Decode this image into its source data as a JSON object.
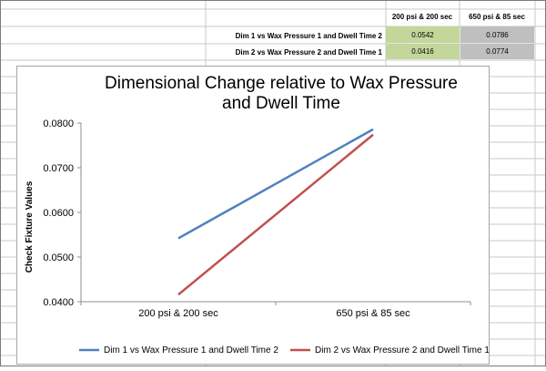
{
  "spreadsheet": {
    "column_headers": [
      "200 psi & 200 sec",
      "650 psi & 85 sec"
    ],
    "rows": [
      {
        "label": "Dim 1 vs Wax Pressure 1 and Dwell Time 2",
        "values": [
          "0.0542",
          "0.0786"
        ]
      },
      {
        "label": "Dim 2 vs Wax Pressure 2 and Dwell Time 1",
        "values": [
          "0.0416",
          "0.0774"
        ]
      }
    ],
    "colors": {
      "col1_fill": "#c4d79b",
      "col2_fill": "#bfbfbf",
      "grid": "#c8c8c8"
    }
  },
  "chart_data": {
    "type": "line",
    "title_line1": "Dimensional Change relative to Wax Pressure",
    "title_line2": "and Dwell Time",
    "xlabel": "",
    "ylabel": "Check Fixture Values",
    "categories": [
      "200 psi & 200 sec",
      "650 psi & 85 sec"
    ],
    "ylim": [
      0.04,
      0.08
    ],
    "yticks": [
      "0.0400",
      "0.0500",
      "0.0600",
      "0.0700",
      "0.0800"
    ],
    "series": [
      {
        "name": "Dim 1 vs Wax Pressure 1 and Dwell Time 2",
        "values": [
          0.0542,
          0.0786
        ],
        "color": "#4f81bd"
      },
      {
        "name": "Dim 2 vs Wax Pressure 2 and Dwell Time 1",
        "values": [
          0.0416,
          0.0774
        ],
        "color": "#c0504d"
      }
    ],
    "grid": false,
    "legend": "bottom"
  }
}
